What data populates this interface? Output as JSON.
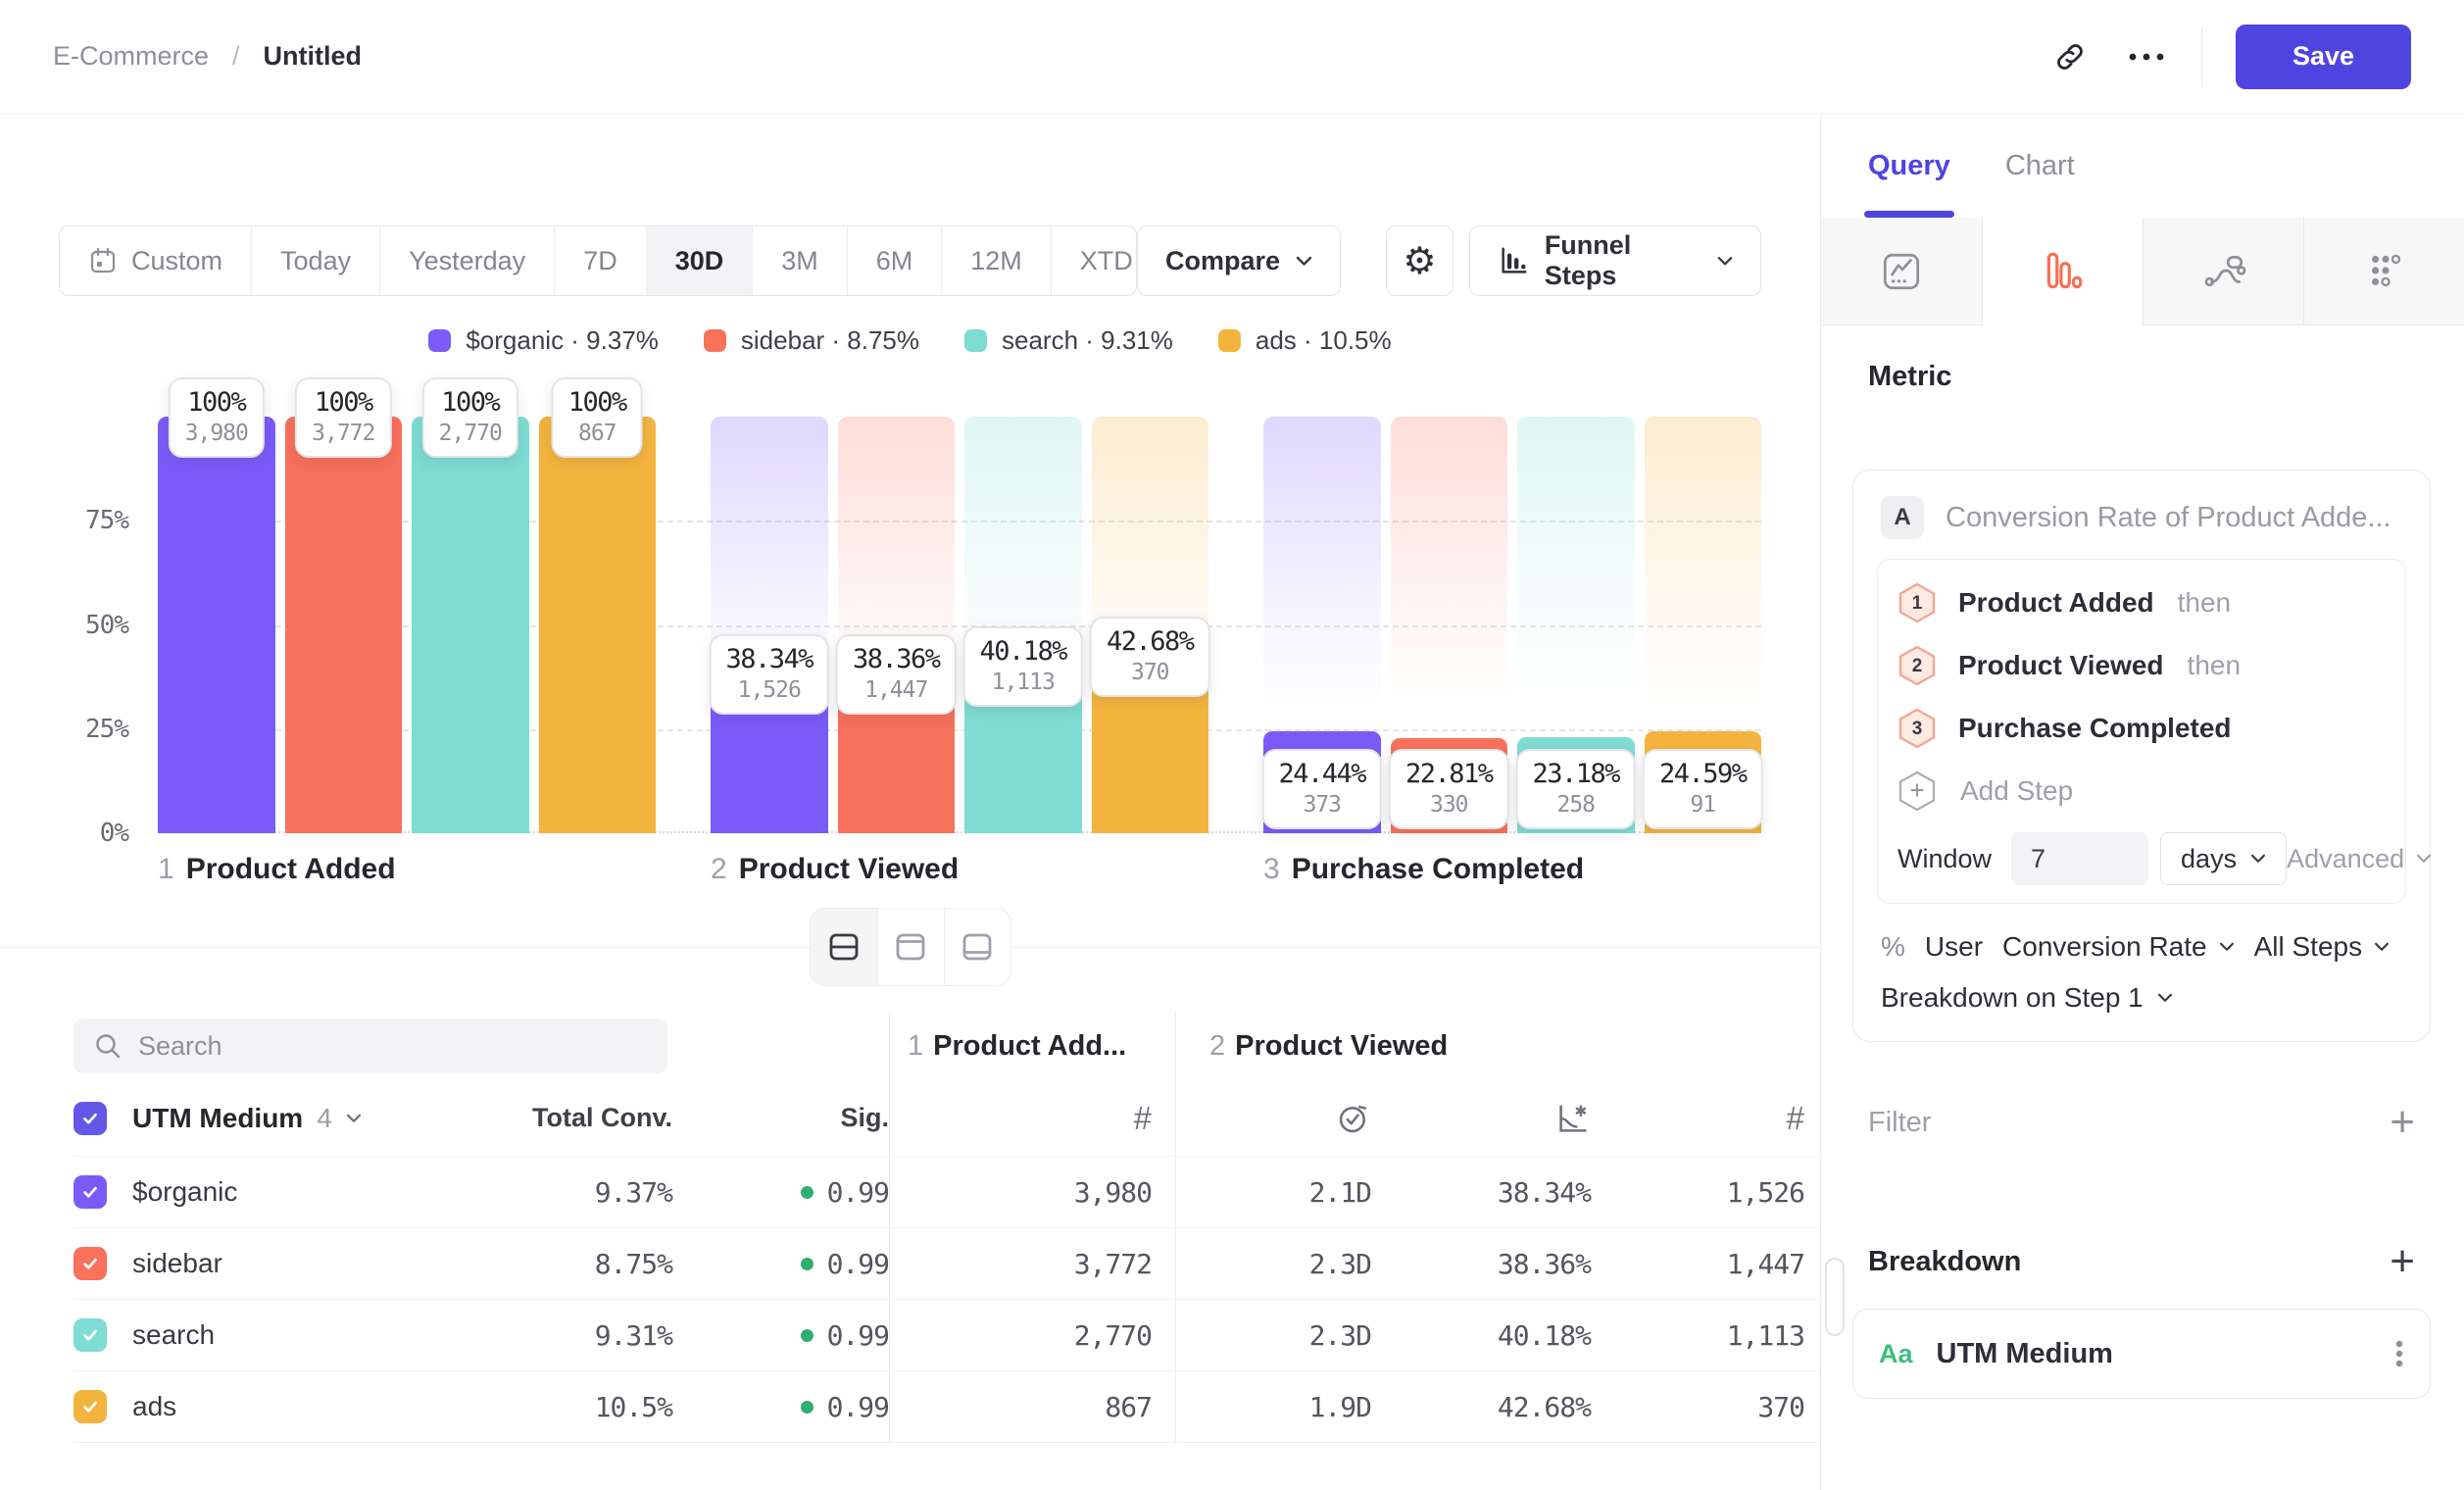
{
  "header": {
    "breadcrumb_section": "E-Commerce",
    "breadcrumb_separator": "/",
    "breadcrumb_page": "Untitled",
    "save_label": "Save"
  },
  "toolbar": {
    "ranges": [
      "Custom",
      "Today",
      "Yesterday",
      "7D",
      "30D",
      "3M",
      "6M",
      "12M",
      "XTD"
    ],
    "active_range": "30D",
    "compare_label": "Compare",
    "view_type_label": "Funnel Steps"
  },
  "legend": [
    {
      "label": "$organic",
      "value": "9.37%",
      "color": "#7B5BF8"
    },
    {
      "label": "sidebar",
      "value": "8.75%",
      "color": "#F8715A"
    },
    {
      "label": "search",
      "value": "9.31%",
      "color": "#7EDCD2"
    },
    {
      "label": "ads",
      "value": "10.5%",
      "color": "#F3B43E"
    }
  ],
  "chart_data": {
    "type": "bar",
    "subtype": "funnel",
    "steps": [
      {
        "index": "1",
        "name": "Product Added"
      },
      {
        "index": "2",
        "name": "Product Viewed"
      },
      {
        "index": "3",
        "name": "Purchase Completed"
      }
    ],
    "ylabel_ticks": [
      "75%",
      "50%",
      "25%",
      "0%"
    ],
    "ylim": [
      0,
      100
    ],
    "grid": "dashed-horizontal",
    "series": [
      {
        "name": "$organic",
        "color": "#7B5BF8",
        "pct": [
          100,
          38.34,
          24.44
        ],
        "pct_labels": [
          "100%",
          "38.34%",
          "24.44%"
        ],
        "counts": [
          "3,980",
          "1,526",
          "373"
        ]
      },
      {
        "name": "sidebar",
        "color": "#F8715A",
        "pct": [
          100,
          38.36,
          22.81
        ],
        "pct_labels": [
          "100%",
          "38.36%",
          "22.81%"
        ],
        "counts": [
          "3,772",
          "1,447",
          "330"
        ]
      },
      {
        "name": "search",
        "color": "#7EDCD2",
        "pct": [
          100,
          40.18,
          23.18
        ],
        "pct_labels": [
          "100%",
          "40.18%",
          "23.18%"
        ],
        "counts": [
          "2,770",
          "1,113",
          "258"
        ]
      },
      {
        "name": "ads",
        "color": "#F3B43E",
        "pct": [
          100,
          42.68,
          24.59
        ],
        "pct_labels": [
          "100%",
          "42.68%",
          "24.59%"
        ],
        "counts": [
          "867",
          "370",
          "91"
        ]
      }
    ]
  },
  "table": {
    "search_placeholder": "Search",
    "group_column": {
      "label": "UTM Medium",
      "count": "4"
    },
    "total_col": "Total Conv.",
    "sig_col": "Sig.",
    "step_groups": [
      {
        "index": "1",
        "label": "Product Add..."
      },
      {
        "index": "2",
        "label": "Product Viewed"
      }
    ],
    "rows": [
      {
        "name": "$organic",
        "color": "#7B5BF8",
        "total": "9.37%",
        "sig": "0.99",
        "step1_count": "3,980",
        "avg_time": "2.1D",
        "conv_rate": "38.34%",
        "step2_count": "1,526"
      },
      {
        "name": "sidebar",
        "color": "#F8715A",
        "total": "8.75%",
        "sig": "0.99",
        "step1_count": "3,772",
        "avg_time": "2.3D",
        "conv_rate": "38.36%",
        "step2_count": "1,447"
      },
      {
        "name": "search",
        "color": "#7EDCD2",
        "total": "9.31%",
        "sig": "0.99",
        "step1_count": "2,770",
        "avg_time": "2.3D",
        "conv_rate": "40.18%",
        "step2_count": "1,113"
      },
      {
        "name": "ads",
        "color": "#F3B43E",
        "total": "10.5%",
        "sig": "0.99",
        "step1_count": "867",
        "avg_time": "1.9D",
        "conv_rate": "42.68%",
        "step2_count": "370"
      }
    ]
  },
  "panel": {
    "tabs": [
      "Query",
      "Chart"
    ],
    "active_tab": "Query",
    "metric_heading": "Metric",
    "metric": {
      "badge": "A",
      "title": "Conversion Rate of Product Adde..."
    },
    "steps": [
      {
        "num": "1",
        "name": "Product Added",
        "suffix": "then"
      },
      {
        "num": "2",
        "name": "Product Viewed",
        "suffix": "then"
      },
      {
        "num": "3",
        "name": "Purchase Completed",
        "suffix": ""
      }
    ],
    "add_step_label": "Add Step",
    "window": {
      "label": "Window",
      "value": "7",
      "unit": "days",
      "advanced_label": "Advanced"
    },
    "measure": {
      "prefix": "%",
      "entity": "User",
      "metric": "Conversion Rate",
      "scope": "All Steps"
    },
    "breakdown_on": "Breakdown on Step 1",
    "filter_heading": "Filter",
    "breakdown_heading": "Breakdown",
    "breakdown_item": {
      "type_badge": "Aa",
      "name": "UTM Medium"
    }
  },
  "colors": {
    "accent": "#4F44E0",
    "funnel_tab_icon": "#F86E51",
    "sig_dot": "#2FAE6F",
    "property_type_green": "#3DBE7B",
    "header_checkbox": "#6456E9"
  }
}
